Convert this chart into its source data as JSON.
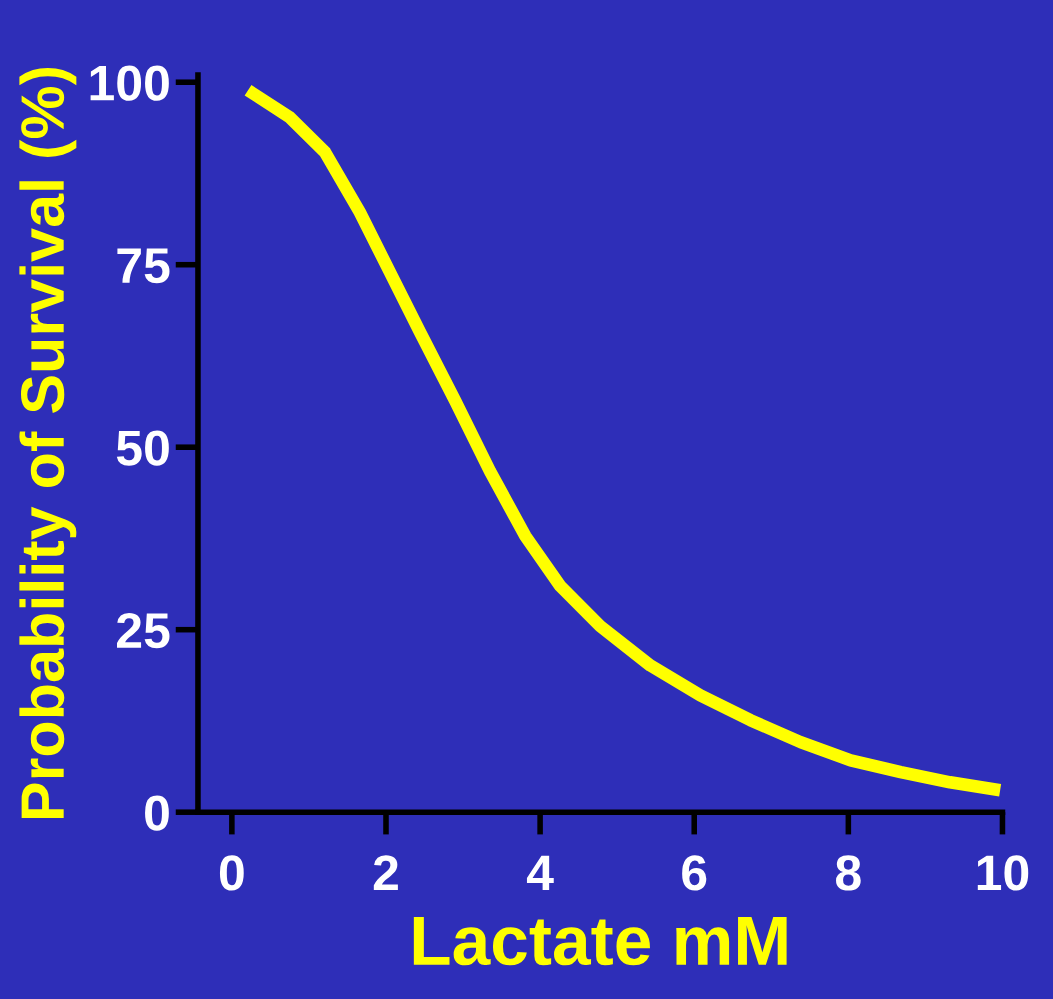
{
  "chart_data": {
    "type": "line",
    "xlabel": "Lactate mM",
    "ylabel": "Probability of Survival (%)",
    "x": [
      0.21,
      0.75,
      1.21,
      1.66,
      2.05,
      2.44,
      2.9,
      3.35,
      3.81,
      4.26,
      4.78,
      5.43,
      6.08,
      6.73,
      7.38,
      8.03,
      8.68,
      9.32,
      9.97
    ],
    "series": [
      {
        "color": "#ffff00",
        "values": [
          98.9,
          95.2,
          90.4,
          82.2,
          74.0,
          65.8,
          56.3,
          46.7,
          37.8,
          31.0,
          25.5,
          20.1,
          16.0,
          12.6,
          9.6,
          7.1,
          5.5,
          4.1,
          3.0
        ]
      }
    ],
    "xlim": [
      -0.44,
      10
    ],
    "ylim": [
      0,
      101
    ],
    "xticks": [
      0,
      2,
      4,
      6,
      8,
      10
    ],
    "yticks": [
      0,
      25,
      50,
      75,
      100
    ],
    "grid": false,
    "marker": "none",
    "line_style": "solid"
  }
}
